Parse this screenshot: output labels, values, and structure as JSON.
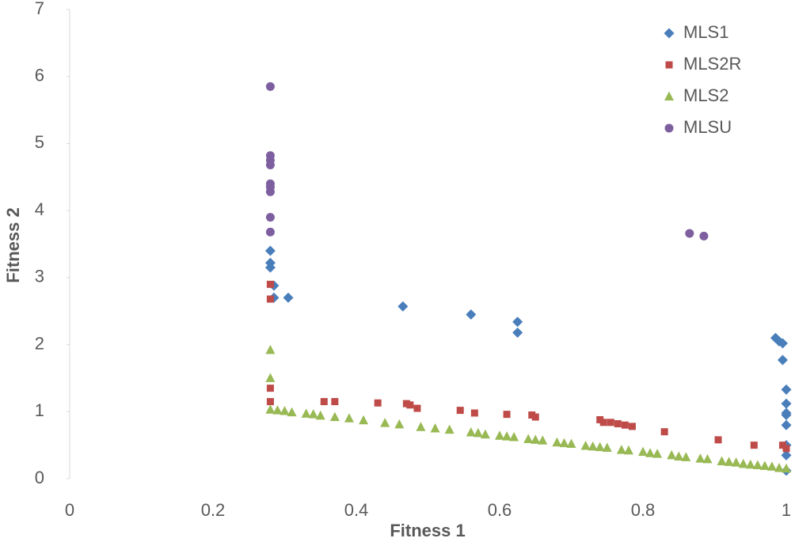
{
  "chart_data": {
    "type": "scatter",
    "xlabel": "Fitness 1",
    "ylabel": "Fitness 2",
    "xlim": [
      0,
      1
    ],
    "ylim": [
      0,
      7
    ],
    "xticks": [
      0,
      0.2,
      0.4,
      0.6,
      0.8,
      1
    ],
    "yticks": [
      0,
      1,
      2,
      3,
      4,
      5,
      6,
      7
    ],
    "legend": "upper right",
    "series": [
      {
        "name": "MLS1",
        "color": "#4a7ebb",
        "marker": "diamond",
        "x": [
          0.28,
          0.28,
          0.28,
          0.285,
          0.285,
          0.305,
          0.465,
          0.56,
          0.625,
          0.625,
          0.985,
          0.99,
          0.995,
          0.995,
          1.0,
          1.0,
          1.0,
          1.0,
          1.0,
          1.0,
          1.0,
          1.0
        ],
        "values": [
          3.4,
          3.22,
          3.15,
          2.88,
          2.7,
          2.7,
          2.57,
          2.45,
          2.34,
          2.18,
          2.1,
          2.05,
          2.02,
          1.77,
          1.33,
          1.12,
          0.98,
          0.95,
          0.8,
          0.5,
          0.35,
          0.12
        ]
      },
      {
        "name": "MLS2R",
        "color": "#be4b48",
        "marker": "square",
        "x": [
          0.28,
          0.28,
          0.28,
          0.28,
          0.355,
          0.37,
          0.43,
          0.47,
          0.475,
          0.485,
          0.545,
          0.565,
          0.61,
          0.645,
          0.65,
          0.74,
          0.745,
          0.755,
          0.765,
          0.775,
          0.785,
          0.83,
          0.905,
          0.955,
          0.995,
          1.0
        ],
        "values": [
          2.9,
          2.68,
          1.35,
          1.15,
          1.15,
          1.15,
          1.13,
          1.12,
          1.1,
          1.05,
          1.02,
          0.98,
          0.96,
          0.95,
          0.92,
          0.88,
          0.84,
          0.84,
          0.82,
          0.8,
          0.78,
          0.7,
          0.58,
          0.5,
          0.5,
          0.45
        ]
      },
      {
        "name": "MLS2",
        "color": "#98b954",
        "marker": "triangle",
        "x": [
          0.28,
          0.28,
          0.28,
          0.29,
          0.3,
          0.31,
          0.33,
          0.34,
          0.35,
          0.37,
          0.39,
          0.41,
          0.44,
          0.46,
          0.49,
          0.51,
          0.53,
          0.56,
          0.57,
          0.58,
          0.6,
          0.61,
          0.62,
          0.64,
          0.65,
          0.66,
          0.68,
          0.69,
          0.7,
          0.72,
          0.73,
          0.74,
          0.75,
          0.77,
          0.78,
          0.8,
          0.81,
          0.82,
          0.84,
          0.85,
          0.86,
          0.88,
          0.89,
          0.91,
          0.92,
          0.93,
          0.94,
          0.95,
          0.96,
          0.97,
          0.98,
          0.99,
          1.0
        ],
        "values": [
          1.92,
          1.5,
          1.03,
          1.02,
          1.01,
          0.99,
          0.97,
          0.96,
          0.94,
          0.92,
          0.9,
          0.87,
          0.83,
          0.81,
          0.77,
          0.75,
          0.73,
          0.69,
          0.68,
          0.66,
          0.64,
          0.63,
          0.62,
          0.59,
          0.58,
          0.57,
          0.54,
          0.53,
          0.52,
          0.49,
          0.48,
          0.47,
          0.46,
          0.43,
          0.42,
          0.4,
          0.38,
          0.37,
          0.35,
          0.33,
          0.32,
          0.3,
          0.29,
          0.26,
          0.25,
          0.24,
          0.22,
          0.21,
          0.2,
          0.19,
          0.18,
          0.16,
          0.15
        ]
      },
      {
        "name": "MLSU",
        "color": "#7d5fa0",
        "marker": "circle",
        "x": [
          0.28,
          0.28,
          0.28,
          0.28,
          0.28,
          0.28,
          0.28,
          0.28,
          0.28,
          0.865,
          0.885
        ],
        "values": [
          5.85,
          4.82,
          4.75,
          4.68,
          4.4,
          4.35,
          4.28,
          3.9,
          3.68,
          3.66,
          3.62
        ]
      }
    ]
  }
}
